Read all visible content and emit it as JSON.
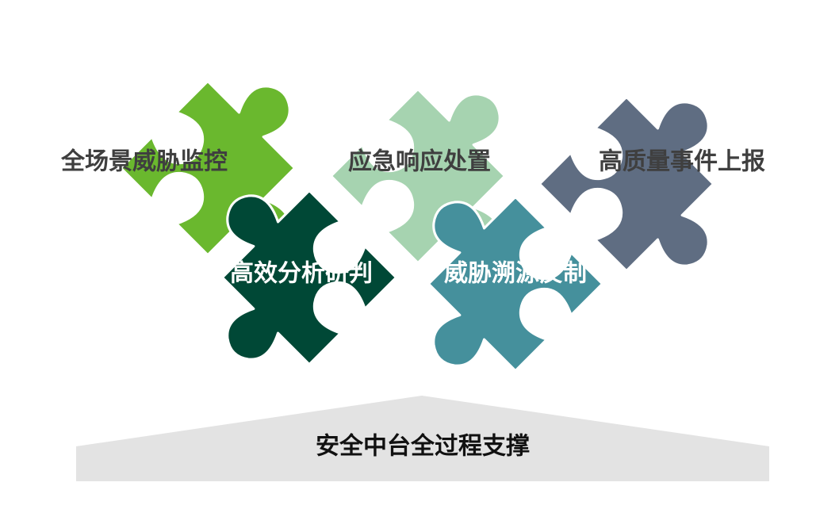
{
  "diagram": {
    "capabilities": [
      {
        "id": "monitor",
        "label": "全场景威胁监控",
        "color": "#6ab82e",
        "text_style": "dark"
      },
      {
        "id": "response",
        "label": "应急响应处置",
        "color": "#a6d3b0",
        "text_style": "dark"
      },
      {
        "id": "report",
        "label": "高质量事件上报",
        "color": "#5f6d82",
        "text_style": "dark"
      },
      {
        "id": "analysis",
        "label": "高效分析研判",
        "color": "#004836",
        "text_style": "light"
      },
      {
        "id": "trace",
        "label": "威胁溯源反制",
        "color": "#45909c",
        "text_style": "light"
      }
    ],
    "foundation": {
      "label": "安全中台全过程支撑",
      "color": "#e3e3e3"
    }
  }
}
